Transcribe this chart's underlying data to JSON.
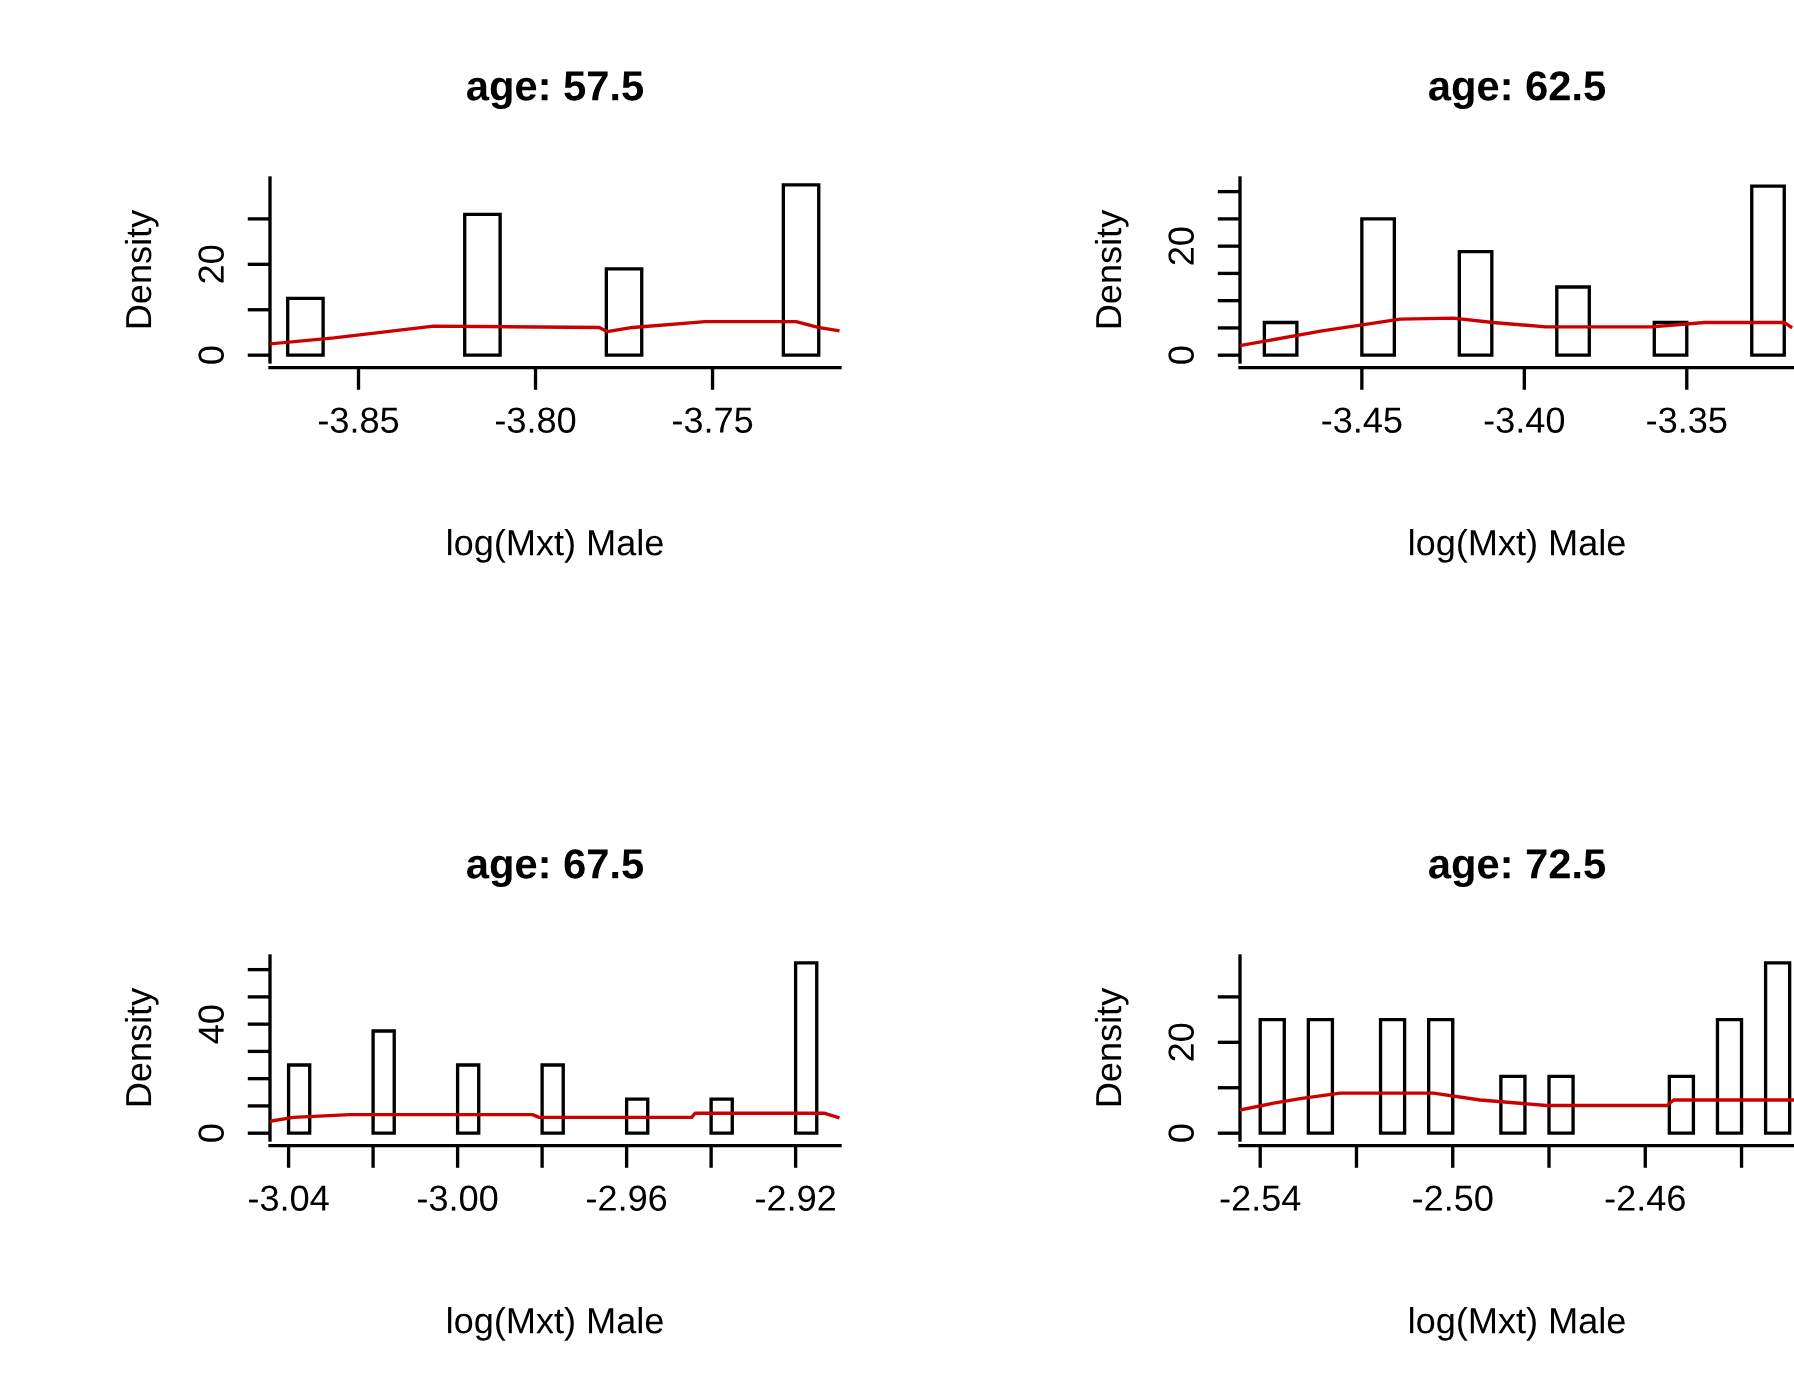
{
  "chart_data": [
    {
      "type": "histogram",
      "title": "age: 57.5",
      "xlabel": "log(Mxt) Male",
      "ylabel": "Density",
      "color": "#ffffff",
      "bins": [
        -3.87,
        -3.86,
        -3.85,
        -3.84,
        -3.83,
        -3.82,
        -3.81,
        -3.8,
        -3.79,
        -3.78,
        -3.77,
        -3.76,
        -3.75,
        -3.74,
        -3.73,
        -3.72
      ],
      "values": [
        12.5,
        0,
        0,
        0,
        0,
        31,
        0,
        0,
        0,
        19,
        0,
        0,
        0,
        0,
        37.5
      ],
      "series": [
        {
          "type": "line",
          "color": "#cc0000",
          "x": [
            -3.8747,
            -3.8569,
            -3.8288,
            -3.782,
            -3.7798,
            -3.7726,
            -3.752,
            -3.7264,
            -3.7202,
            -3.7146
          ],
          "values": [
            2.5,
            3.8,
            6.4,
            6.1,
            5.2,
            6.1,
            7.4,
            7.4,
            6.1,
            5.4
          ]
        }
      ],
      "xlim": [
        -3.875,
        -3.714
      ],
      "ylim": [
        -1.5,
        39
      ],
      "xticks": [
        -3.85,
        {
          "value": -3.8,
          "label": "-3.80"
        },
        -3.75
      ],
      "yticks": [
        0,
        {
          "value": 10,
          "label": null
        },
        20,
        {
          "value": 30,
          "label": null
        }
      ],
      "grid": false,
      "legend": false
    },
    {
      "type": "histogram",
      "title": "age: 62.5",
      "xlabel": "log(Mxt) Male",
      "ylabel": "Density",
      "color": "#ffffff",
      "bins": [
        -3.48,
        -3.47,
        -3.46,
        -3.45,
        -3.44,
        -3.43,
        -3.42,
        -3.41,
        -3.4,
        -3.39,
        -3.38,
        -3.37,
        -3.36,
        -3.35,
        -3.34,
        -3.33,
        -3.32
      ],
      "values": [
        6,
        0,
        0,
        25,
        0,
        0,
        19,
        0,
        0,
        12.5,
        0,
        0,
        6,
        0,
        0,
        31
      ],
      "series": [
        {
          "type": "line",
          "color": "#cc0000",
          "x": [
            -3.4871,
            -3.4627,
            -3.4382,
            -3.4219,
            -3.4097,
            -3.3934,
            -3.3608,
            -3.3445,
            -3.32,
            -3.318
          ],
          "values": [
            1.8,
            4.4,
            6.6,
            6.8,
            6.0,
            5.2,
            5.2,
            6.0,
            6.0,
            5.2
          ]
        }
      ],
      "xlim": [
        -3.4875,
        -3.317
      ],
      "ylim": [
        -1.25,
        32.5
      ],
      "xticks": [
        -3.45,
        {
          "value": -3.4,
          "label": "-3.40"
        },
        -3.35
      ],
      "yticks": [
        0,
        {
          "value": 5,
          "label": null
        },
        {
          "value": 10,
          "label": null
        },
        {
          "value": 15,
          "label": null
        },
        20,
        {
          "value": 25,
          "label": null
        },
        {
          "value": 30,
          "label": null
        }
      ],
      "grid": false,
      "legend": false
    },
    {
      "type": "histogram",
      "title": "age: 67.5",
      "xlabel": "log(Mxt) Male",
      "ylabel": "Density",
      "color": "#ffffff",
      "bins": [
        -3.04,
        -3.035,
        -3.03,
        -3.025,
        -3.02,
        -3.015,
        -3.01,
        -3.005,
        -3.0,
        -2.995,
        -2.99,
        -2.985,
        -2.98,
        -2.975,
        -2.97,
        -2.965,
        -2.96,
        -2.955,
        -2.95,
        -2.945,
        -2.94,
        -2.935,
        -2.93,
        -2.925,
        -2.92,
        -2.915
      ],
      "values": [
        25,
        0,
        0,
        0,
        37.5,
        0,
        0,
        0,
        25,
        0,
        0,
        0,
        25,
        0,
        0,
        0,
        12.5,
        0,
        0,
        0,
        12.5,
        0,
        0,
        0,
        62.5
      ],
      "series": [
        {
          "type": "line",
          "color": "#cc0000",
          "x": [
            -3.0444,
            -3.0389,
            -3.0255,
            -2.9823,
            -2.9807,
            -2.9446,
            -2.9438,
            -2.9131,
            -2.91
          ],
          "values": [
            4.4,
            5.8,
            6.8,
            6.8,
            5.8,
            5.8,
            7.3,
            7.3,
            5.8
          ]
        }
      ],
      "xlim": [
        -3.0444,
        -2.9095
      ],
      "ylim": [
        -2.5,
        65
      ],
      "xticks": [
        -3.04,
        {
          "value": -3.02,
          "label": null
        },
        {
          "value": -3.0,
          "label": "-3.00"
        },
        {
          "value": -2.98,
          "label": null
        },
        -2.96,
        {
          "value": -2.94,
          "label": null
        },
        -2.92
      ],
      "yticks": [
        0,
        {
          "value": 10,
          "label": null
        },
        {
          "value": 20,
          "label": null
        },
        {
          "value": 30,
          "label": null
        },
        40,
        {
          "value": 50,
          "label": null
        },
        {
          "value": 60,
          "label": null
        }
      ],
      "grid": false,
      "legend": false
    },
    {
      "type": "histogram",
      "title": "age: 72.5",
      "xlabel": "log(Mxt) Male",
      "ylabel": "Density",
      "color": "#ffffff",
      "bins": [
        -2.54,
        -2.535,
        -2.53,
        -2.525,
        -2.52,
        -2.515,
        -2.51,
        -2.505,
        -2.5,
        -2.495,
        -2.49,
        -2.485,
        -2.48,
        -2.475,
        -2.47,
        -2.465,
        -2.46,
        -2.455,
        -2.45,
        -2.445,
        -2.44,
        -2.435,
        -2.43
      ],
      "values": [
        25,
        0,
        25,
        0,
        0,
        25,
        0,
        25,
        0,
        0,
        12.5,
        0,
        12.5,
        0,
        0,
        0,
        0,
        12.5,
        0,
        25,
        0,
        37.5
      ],
      "series": [
        {
          "type": "line",
          "color": "#cc0000",
          "x": [
            -2.5442,
            -2.5372,
            -2.5317,
            -2.5234,
            -2.504,
            -2.4943,
            -2.4805,
            -2.4555,
            -2.4541,
            -2.4292
          ],
          "values": [
            5.1,
            6.6,
            7.6,
            8.8,
            8.8,
            7.3,
            6.1,
            6.1,
            7.3,
            7.3
          ]
        }
      ],
      "xlim": [
        -2.5442,
        -2.4291
      ],
      "ylim": [
        -1.5,
        39
      ],
      "xticks": [
        -2.54,
        {
          "value": -2.52,
          "label": null
        },
        {
          "value": -2.5,
          "label": "-2.50"
        },
        {
          "value": -2.48,
          "label": null
        },
        -2.46,
        {
          "value": -2.44,
          "label": null
        }
      ],
      "yticks": [
        0,
        {
          "value": 10,
          "label": null
        },
        20,
        {
          "value": 30,
          "label": null
        }
      ],
      "grid": false,
      "legend": false
    }
  ]
}
